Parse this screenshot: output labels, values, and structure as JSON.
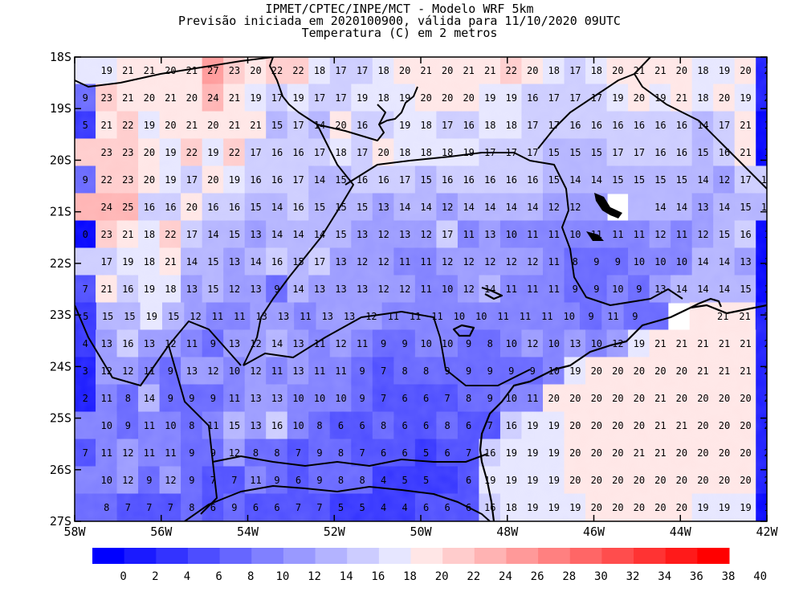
{
  "title": {
    "line1": "IPMET/CPTEC/INPE/MCT - Modelo WRF 5km",
    "line2": "Previsão iniciada em 2020100900, válida para 11/10/2020 09UTC",
    "line3": "Temperatura (C) em 2 metros"
  },
  "map": {
    "lon_range": [
      -58,
      -42
    ],
    "lat_range": [
      -27,
      -18
    ],
    "x_ticks": [
      "58W",
      "56W",
      "54W",
      "52W",
      "50W",
      "48W",
      "46W",
      "44W",
      "42W"
    ],
    "y_ticks": [
      "18S",
      "19S",
      "20S",
      "21S",
      "22S",
      "23S",
      "24S",
      "25S",
      "26S",
      "27S"
    ]
  },
  "grid_rows": [
    [
      null,
      19,
      21,
      21,
      20,
      21,
      27,
      23,
      20,
      22,
      22,
      18,
      17,
      17,
      18,
      20,
      21,
      20,
      21,
      21,
      22,
      20,
      18,
      17,
      18,
      20,
      21,
      21,
      20,
      18,
      19,
      20,
      2
    ],
    [
      9,
      23,
      21,
      20,
      21,
      20,
      24,
      21,
      19,
      17,
      19,
      17,
      17,
      19,
      18,
      19,
      20,
      20,
      20,
      19,
      19,
      16,
      17,
      17,
      17,
      19,
      20,
      19,
      21,
      18,
      20,
      19,
      2
    ],
    [
      5,
      21,
      22,
      19,
      20,
      21,
      20,
      21,
      21,
      15,
      17,
      14,
      20,
      16,
      null,
      19,
      18,
      17,
      16,
      18,
      18,
      17,
      17,
      16,
      16,
      16,
      16,
      16,
      16,
      14,
      17,
      21,
      1
    ],
    [
      null,
      23,
      23,
      20,
      19,
      22,
      19,
      22,
      17,
      16,
      16,
      17,
      18,
      17,
      20,
      18,
      18,
      18,
      19,
      17,
      17,
      17,
      15,
      15,
      15,
      17,
      17,
      16,
      16,
      15,
      16,
      21,
      1
    ],
    [
      9,
      22,
      23,
      20,
      19,
      17,
      20,
      19,
      16,
      16,
      17,
      14,
      15,
      16,
      16,
      17,
      15,
      16,
      16,
      16,
      16,
      16,
      15,
      14,
      14,
      15,
      15,
      15,
      15,
      14,
      12,
      17,
      16
    ],
    [
      null,
      24,
      25,
      16,
      16,
      20,
      16,
      16,
      15,
      14,
      16,
      15,
      15,
      15,
      13,
      14,
      14,
      12,
      14,
      14,
      14,
      14,
      12,
      12,
      null,
      null,
      null,
      14,
      14,
      13,
      14,
      15,
      15
    ],
    [
      0,
      23,
      21,
      18,
      22,
      17,
      14,
      15,
      13,
      14,
      14,
      14,
      15,
      13,
      12,
      13,
      12,
      17,
      11,
      13,
      10,
      11,
      11,
      10,
      11,
      11,
      11,
      12,
      11,
      12,
      15,
      16,
      1
    ],
    [
      null,
      17,
      19,
      18,
      21,
      14,
      15,
      13,
      14,
      16,
      15,
      17,
      13,
      12,
      12,
      11,
      11,
      12,
      12,
      12,
      12,
      12,
      11,
      8,
      9,
      9,
      10,
      10,
      10,
      14,
      14,
      13,
      1
    ],
    [
      7,
      21,
      16,
      19,
      18,
      13,
      15,
      12,
      13,
      9,
      14,
      13,
      13,
      13,
      12,
      12,
      11,
      10,
      12,
      14,
      11,
      11,
      11,
      9,
      9,
      10,
      9,
      13,
      14,
      14,
      14,
      15,
      1
    ],
    [
      5,
      15,
      15,
      19,
      15,
      12,
      11,
      11,
      13,
      13,
      11,
      13,
      13,
      12,
      11,
      11,
      11,
      10,
      10,
      11,
      11,
      11,
      10,
      9,
      11,
      9,
      null,
      null,
      null,
      21,
      21,
      2
    ],
    [
      4,
      13,
      16,
      13,
      12,
      11,
      9,
      13,
      12,
      14,
      13,
      11,
      12,
      11,
      9,
      9,
      10,
      10,
      9,
      8,
      10,
      12,
      10,
      13,
      10,
      12,
      19,
      21,
      21,
      21,
      21,
      21,
      2
    ],
    [
      3,
      12,
      12,
      11,
      9,
      13,
      12,
      10,
      12,
      11,
      13,
      11,
      11,
      9,
      7,
      8,
      8,
      9,
      9,
      9,
      9,
      9,
      10,
      19,
      20,
      20,
      20,
      20,
      20,
      21,
      21,
      21,
      2
    ],
    [
      2,
      11,
      8,
      14,
      9,
      9,
      9,
      11,
      13,
      13,
      10,
      10,
      10,
      9,
      7,
      6,
      6,
      7,
      8,
      9,
      10,
      11,
      20,
      20,
      20,
      20,
      20,
      21,
      20,
      20,
      20,
      20,
      2
    ],
    [
      null,
      10,
      9,
      11,
      10,
      8,
      11,
      15,
      13,
      16,
      10,
      8,
      6,
      6,
      8,
      6,
      6,
      8,
      6,
      7,
      16,
      19,
      19,
      20,
      20,
      20,
      20,
      21,
      21,
      20,
      20,
      20,
      2
    ],
    [
      7,
      11,
      12,
      11,
      11,
      9,
      9,
      12,
      8,
      8,
      7,
      9,
      8,
      7,
      6,
      6,
      5,
      6,
      7,
      16,
      19,
      19,
      19,
      20,
      20,
      20,
      21,
      21,
      20,
      20,
      20,
      20,
      2
    ],
    [
      null,
      10,
      12,
      9,
      12,
      9,
      7,
      7,
      11,
      9,
      6,
      9,
      8,
      8,
      4,
      5,
      5,
      null,
      6,
      19,
      19,
      19,
      19,
      20,
      20,
      20,
      20,
      20,
      20,
      20,
      20,
      20,
      2
    ],
    [
      null,
      8,
      7,
      7,
      7,
      8,
      6,
      9,
      6,
      6,
      7,
      7,
      5,
      5,
      4,
      4,
      6,
      6,
      6,
      16,
      18,
      19,
      19,
      19,
      20,
      20,
      20,
      20,
      20,
      19,
      19,
      19,
      1
    ]
  ],
  "colorbar": {
    "labels": [
      "0",
      "2",
      "4",
      "6",
      "8",
      "10",
      "12",
      "14",
      "16",
      "18",
      "20",
      "22",
      "24",
      "26",
      "28",
      "30",
      "32",
      "34",
      "36",
      "38",
      "40"
    ],
    "colors": [
      "#0000ff",
      "#1a1aff",
      "#3333ff",
      "#4d4dff",
      "#6666ff",
      "#8080ff",
      "#9999ff",
      "#b3b3ff",
      "#ccccff",
      "#e6e6ff",
      "#ffe6e6",
      "#ffcccc",
      "#ffb3b3",
      "#ff9999",
      "#ff8080",
      "#ff6666",
      "#ff4d4d",
      "#ff3333",
      "#ff1a1a",
      "#ff0000"
    ]
  }
}
